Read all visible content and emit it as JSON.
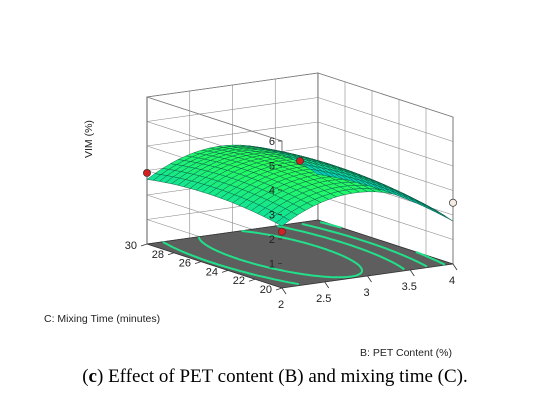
{
  "chart_data": {
    "type": "surface3d",
    "x_axis": {
      "label": "B: PET Content  (%)",
      "range": [
        2,
        4
      ],
      "ticks": [
        "2",
        "2.5",
        "3",
        "3.5",
        "4"
      ]
    },
    "y_axis": {
      "label": "C: Mixing Time (minutes)",
      "range": [
        20,
        30
      ],
      "ticks": [
        "20",
        "22",
        "24",
        "26",
        "28",
        "30"
      ]
    },
    "z_axis": {
      "label": "VIM (%)",
      "range": [
        0,
        6
      ],
      "ticks": [
        "1",
        "2",
        "3",
        "4",
        "5",
        "6"
      ]
    },
    "surface_color": "#20e8a0",
    "floor_color": "#5e5e5e",
    "contour_color": "#22e08a",
    "design_points": [
      {
        "x": 2,
        "y": 30,
        "z": 2.9,
        "color": "#d42020"
      },
      {
        "x": 3,
        "y": 25,
        "z": 3.8,
        "color": "#d42020"
      },
      {
        "x": 2,
        "y": 20,
        "z": 2.3,
        "color": "#d42020"
      },
      {
        "x": 4,
        "y": 20,
        "z": 2.5,
        "color": "#f3ece2"
      }
    ]
  },
  "caption": {
    "prefix_open": "(",
    "letter": "c",
    "prefix_close": ")",
    "text": " Effect of PET content (B) and mixing time (C)."
  }
}
